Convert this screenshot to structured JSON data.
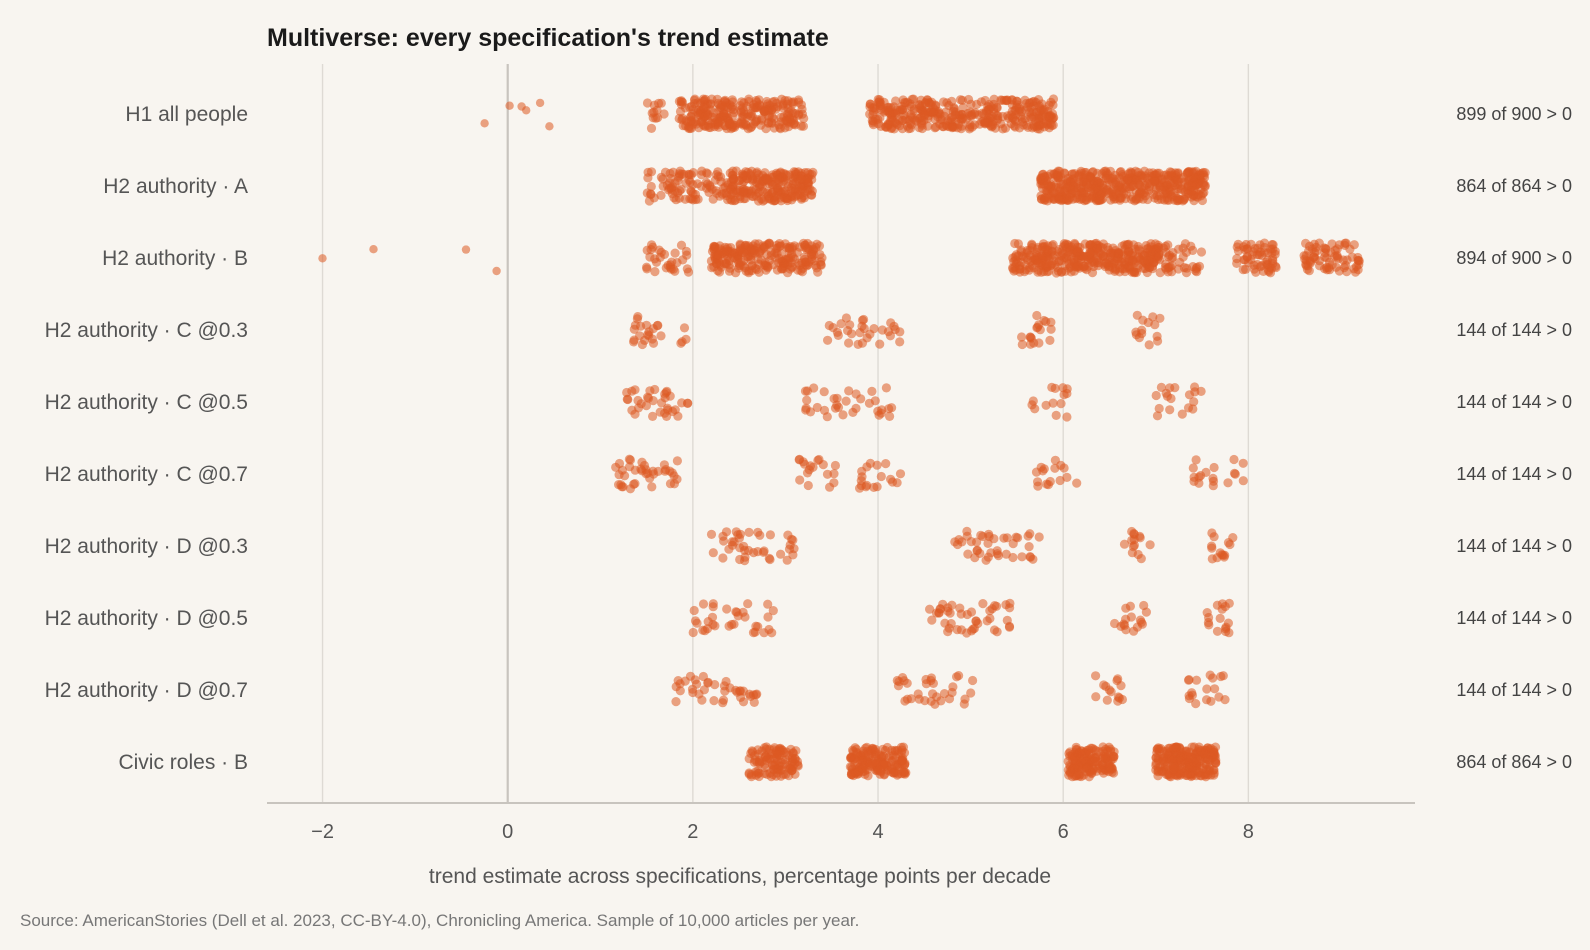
{
  "chart_data": {
    "type": "scatter",
    "title": "Multiverse: every specification's trend estimate",
    "xlabel": "trend estimate across specifications, percentage points per decade",
    "xlim": [
      -2.6,
      9.8
    ],
    "xticks": [
      -2,
      0,
      2,
      4,
      6,
      8
    ],
    "xtick_labels": [
      "−2",
      "0",
      "2",
      "4",
      "6",
      "8"
    ],
    "grid": "vertical",
    "source": "Source: AmericanStories (Dell et al. 2023, CC-BY-4.0), Chronicling America. Sample of 10,000 articles per year.",
    "colors": {
      "points": "#dd5a22",
      "background": "#f8f5f0",
      "grid": "#dedad4",
      "zero_line": "#c8c4be"
    },
    "rows": [
      {
        "label": "H1 all people",
        "annotation": "899 of 900 > 0",
        "outliers": [
          -0.25,
          0.02,
          0.15,
          0.2,
          0.35,
          0.45
        ],
        "clusters": [
          {
            "min": 1.5,
            "max": 1.7,
            "n": 12
          },
          {
            "min": 1.85,
            "max": 3.2,
            "n": 260
          },
          {
            "min": 3.9,
            "max": 5.9,
            "n": 360
          }
        ]
      },
      {
        "label": "H2 authority · A",
        "annotation": "864 of 864 > 0",
        "outliers": [],
        "clusters": [
          {
            "min": 1.5,
            "max": 2.4,
            "n": 90
          },
          {
            "min": 2.4,
            "max": 3.3,
            "n": 220
          },
          {
            "min": 5.75,
            "max": 7.55,
            "n": 480
          }
        ]
      },
      {
        "label": "H2 authority · B",
        "annotation": "894 of 900 > 0",
        "outliers": [
          -2.0,
          -1.45,
          -0.45,
          -0.12
        ],
        "clusters": [
          {
            "min": 1.45,
            "max": 2.0,
            "n": 30
          },
          {
            "min": 2.2,
            "max": 3.4,
            "n": 230
          },
          {
            "min": 5.45,
            "max": 7.05,
            "n": 360
          },
          {
            "min": 7.0,
            "max": 7.5,
            "n": 40
          },
          {
            "min": 7.85,
            "max": 8.3,
            "n": 60
          },
          {
            "min": 8.6,
            "max": 9.2,
            "n": 70
          }
        ]
      },
      {
        "label": "H2 authority · C @0.3",
        "annotation": "144 of 144 > 0",
        "outliers": [],
        "clusters": [
          {
            "min": 1.35,
            "max": 1.7,
            "n": 20
          },
          {
            "min": 1.85,
            "max": 1.95,
            "n": 4
          },
          {
            "min": 3.4,
            "max": 4.25,
            "n": 30
          },
          {
            "min": 5.55,
            "max": 5.9,
            "n": 18
          },
          {
            "min": 6.75,
            "max": 7.05,
            "n": 14
          }
        ]
      },
      {
        "label": "H2 authority · C @0.5",
        "annotation": "144 of 144 > 0",
        "outliers": [],
        "clusters": [
          {
            "min": 1.25,
            "max": 1.95,
            "n": 34
          },
          {
            "min": 3.2,
            "max": 4.15,
            "n": 34
          },
          {
            "min": 5.6,
            "max": 6.05,
            "n": 14
          },
          {
            "min": 7.0,
            "max": 7.5,
            "n": 18
          }
        ]
      },
      {
        "label": "H2 authority · C @0.7",
        "annotation": "144 of 144 > 0",
        "outliers": [],
        "clusters": [
          {
            "min": 1.15,
            "max": 1.85,
            "n": 38
          },
          {
            "min": 3.1,
            "max": 3.55,
            "n": 18
          },
          {
            "min": 3.8,
            "max": 4.25,
            "n": 18
          },
          {
            "min": 5.7,
            "max": 6.2,
            "n": 16
          },
          {
            "min": 7.4,
            "max": 7.95,
            "n": 18
          }
        ]
      },
      {
        "label": "H2 authority · D @0.3",
        "annotation": "144 of 144 > 0",
        "outliers": [],
        "clusters": [
          {
            "min": 2.2,
            "max": 3.1,
            "n": 40
          },
          {
            "min": 4.75,
            "max": 5.75,
            "n": 40
          },
          {
            "min": 6.6,
            "max": 6.95,
            "n": 14
          },
          {
            "min": 7.6,
            "max": 7.85,
            "n": 14
          }
        ]
      },
      {
        "label": "H2 authority · D @0.5",
        "annotation": "144 of 144 > 0",
        "outliers": [],
        "clusters": [
          {
            "min": 2.0,
            "max": 2.9,
            "n": 34
          },
          {
            "min": 4.5,
            "max": 5.45,
            "n": 44
          },
          {
            "min": 6.55,
            "max": 6.9,
            "n": 16
          },
          {
            "min": 7.55,
            "max": 7.85,
            "n": 16
          }
        ]
      },
      {
        "label": "H2 authority · D @0.7",
        "annotation": "144 of 144 > 0",
        "outliers": [],
        "clusters": [
          {
            "min": 1.8,
            "max": 2.7,
            "n": 38
          },
          {
            "min": 4.2,
            "max": 5.05,
            "n": 32
          },
          {
            "min": 6.35,
            "max": 6.7,
            "n": 14
          },
          {
            "min": 7.35,
            "max": 7.75,
            "n": 18
          }
        ]
      },
      {
        "label": "Civic roles · B",
        "annotation": "864 of 864 > 0",
        "outliers": [],
        "clusters": [
          {
            "min": 2.6,
            "max": 3.15,
            "n": 110
          },
          {
            "min": 3.7,
            "max": 4.3,
            "n": 160
          },
          {
            "min": 6.05,
            "max": 6.55,
            "n": 160
          },
          {
            "min": 7.0,
            "max": 7.65,
            "n": 220
          }
        ]
      }
    ]
  }
}
